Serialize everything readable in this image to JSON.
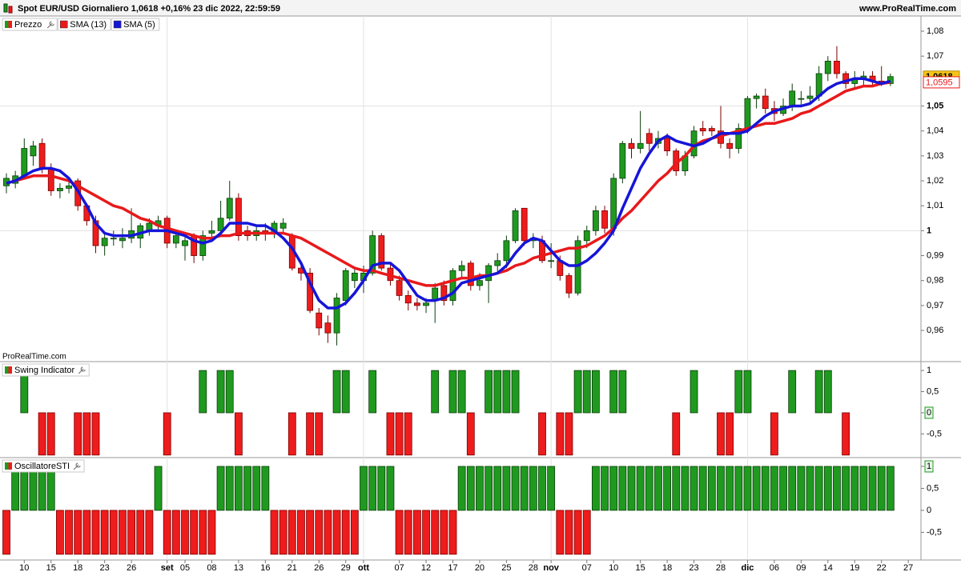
{
  "header": {
    "title": "Spot EUR/USD Giornaliero 1,0618 +0,16% 23 dic 2022, 22:59:59",
    "site": "www.ProRealTime.com"
  },
  "chart_data": [
    {
      "type": "candlestick",
      "watermark": "ProRealTime.com",
      "categories": [
        null,
        null,
        "10",
        null,
        null,
        "15",
        null,
        null,
        "18",
        null,
        null,
        "23",
        null,
        null,
        "26",
        null,
        null,
        null,
        "set",
        null,
        "05",
        null,
        null,
        "08",
        null,
        null,
        "13",
        null,
        null,
        "16",
        null,
        null,
        "21",
        null,
        null,
        "26",
        null,
        null,
        "29",
        null,
        "ott",
        null,
        null,
        null,
        "07",
        null,
        null,
        "12",
        null,
        null,
        "17",
        null,
        null,
        "20",
        null,
        null,
        "25",
        null,
        null,
        "28",
        null,
        "nov",
        null,
        null,
        null,
        "07",
        null,
        null,
        "10",
        null,
        null,
        "15",
        null,
        null,
        "18",
        null,
        null,
        "23",
        null,
        null,
        "28",
        null,
        null,
        "dic",
        null,
        null,
        "06",
        null,
        null,
        "09",
        null,
        null,
        "14",
        null,
        null,
        "19",
        null,
        null,
        "22",
        null,
        null,
        "27"
      ],
      "ylim": [
        0.9475,
        1.0861
      ],
      "yticks": [
        {
          "value": 1.08,
          "label": "1,08"
        },
        {
          "value": 1.07,
          "label": "1,07"
        },
        {
          "value": 1.05,
          "label": "1,05",
          "major": true
        },
        {
          "value": 1.04,
          "label": "1,04"
        },
        {
          "value": 1.03,
          "label": "1,03"
        },
        {
          "value": 1.02,
          "label": "1,02"
        },
        {
          "value": 1.01,
          "label": "1,01"
        },
        {
          "value": 1,
          "label": "1",
          "major": true
        },
        {
          "value": 0.99,
          "label": "0,99"
        },
        {
          "value": 0.98,
          "label": "0,98"
        },
        {
          "value": 0.97,
          "label": "0,97"
        },
        {
          "value": 0.96,
          "label": "0,96"
        }
      ],
      "series": [
        {
          "name": "Prezzo",
          "up_color": "#1f9a1f",
          "down_color": "#ee1c1c",
          "open": [
            1.018,
            1.019,
            1.022,
            1.03,
            1.035,
            1.025,
            1.016,
            1.017,
            1.02,
            1.01,
            1.004,
            0.994,
            0.997,
            0.996,
            0.997,
            0.997,
            1.0,
            1.002,
            1.005,
            0.995,
            0.994,
            0.998,
            0.99,
            0.999,
            1.0,
            1.005,
            1.013,
            1.0,
            0.998,
            1.0,
            0.999,
            1.001,
            0.998,
            0.985,
            0.983,
            0.967,
            0.963,
            0.959,
            0.972,
            0.98,
            0.98,
            0.983,
            0.998,
            0.985,
            0.98,
            0.974,
            0.971,
            0.97,
            0.972,
            0.978,
            0.972,
            0.984,
            0.987,
            0.978,
            0.98,
            0.986,
            0.988,
            0.996,
            1.009,
            0.996,
            0.996,
            0.988,
            0.988,
            0.982,
            0.975,
            0.996,
            1.0,
            1.008,
            1.001,
            1.021,
            1.035,
            1.033,
            1.039,
            1.035,
            1.037,
            1.032,
            1.024,
            1.03,
            1.041,
            1.041,
            1.04,
            1.035,
            1.033,
            1.041,
            1.053,
            1.054,
            1.049,
            1.047,
            1.05,
            1.053,
            1.053,
            1.054,
            1.063,
            1.068,
            1.063,
            1.059,
            1.061,
            1.062,
            1.06,
            1.059,
            null,
            null
          ],
          "high": [
            1.023,
            1.024,
            1.037,
            1.036,
            1.037,
            1.027,
            1.019,
            1.02,
            1.021,
            1.011,
            1.006,
            0.999,
            1.0,
            1.001,
            1.009,
            1.003,
            1.005,
            1.006,
            1.006,
            1.0,
            0.999,
            0.999,
            1.0,
            1.004,
            1.012,
            1.02,
            1.015,
            1.002,
            1.002,
            1.003,
            1.004,
            1.005,
            0.999,
            0.987,
            0.985,
            0.969,
            0.966,
            0.975,
            0.985,
            0.985,
            0.986,
            1.0,
            0.999,
            0.987,
            0.982,
            0.976,
            0.973,
            0.973,
            0.979,
            0.98,
            0.985,
            0.988,
            0.988,
            0.983,
            0.987,
            0.991,
            0.998,
            1.009,
            1.009,
            0.999,
            0.998,
            0.995,
            0.99,
            0.983,
            0.998,
            1.002,
            1.01,
            1.01,
            1.023,
            1.036,
            1.037,
            1.048,
            1.041,
            1.04,
            1.039,
            1.033,
            1.032,
            1.042,
            1.044,
            1.042,
            1.05,
            1.037,
            1.043,
            1.054,
            1.055,
            1.057,
            1.052,
            1.053,
            1.059,
            1.056,
            1.058,
            1.066,
            1.07,
            1.074,
            1.064,
            1.064,
            1.064,
            1.064,
            1.066,
            1.063,
            null,
            null
          ],
          "low": [
            1.015,
            1.017,
            1.021,
            1.026,
            1.023,
            1.014,
            1.013,
            1.015,
            1.008,
            1.002,
            0.991,
            0.99,
            0.994,
            0.993,
            0.995,
            0.993,
            0.998,
            1.0,
            0.993,
            0.993,
            0.988,
            0.987,
            0.988,
            0.997,
            0.998,
            1.004,
            0.996,
            0.996,
            0.996,
            0.996,
            0.997,
            0.999,
            0.984,
            0.98,
            0.967,
            0.958,
            0.955,
            0.954,
            0.97,
            0.977,
            0.975,
            0.982,
            0.984,
            0.978,
            0.972,
            0.968,
            0.968,
            0.967,
            0.963,
            0.97,
            0.97,
            0.981,
            0.976,
            0.976,
            0.971,
            0.983,
            0.985,
            0.995,
            0.994,
            0.993,
            0.987,
            0.985,
            0.98,
            0.973,
            0.974,
            0.993,
            0.998,
            0.999,
            0.998,
            1.019,
            1.029,
            1.031,
            1.032,
            1.033,
            1.03,
            1.022,
            1.022,
            1.029,
            1.038,
            1.038,
            1.033,
            1.029,
            1.031,
            1.039,
            1.049,
            1.047,
            1.044,
            1.046,
            1.048,
            1.05,
            1.051,
            1.052,
            1.06,
            1.061,
            1.057,
            1.057,
            1.058,
            1.058,
            1.058,
            1.058,
            null,
            null
          ],
          "close": [
            1.021,
            1.022,
            1.033,
            1.034,
            1.025,
            1.016,
            1.017,
            1.018,
            1.01,
            1.004,
            0.994,
            0.997,
            0.997,
            0.997,
            1.0,
            1.002,
            1.003,
            1.004,
            0.995,
            0.998,
            0.996,
            0.99,
            0.998,
            1.0,
            1.005,
            1.013,
            0.998,
            0.998,
            1.0,
            0.999,
            1.003,
            1.003,
            0.985,
            0.983,
            0.968,
            0.961,
            0.959,
            0.973,
            0.984,
            0.983,
            0.983,
            0.998,
            0.985,
            0.98,
            0.974,
            0.971,
            0.97,
            0.971,
            0.977,
            0.972,
            0.984,
            0.986,
            0.978,
            0.98,
            0.986,
            0.988,
            0.996,
            1.008,
            0.996,
            0.997,
            0.988,
            0.988,
            0.982,
            0.975,
            0.996,
            1.0,
            1.008,
            1.001,
            1.021,
            1.035,
            1.033,
            1.035,
            1.035,
            1.037,
            1.032,
            1.024,
            1.03,
            1.04,
            1.04,
            1.04,
            1.035,
            1.033,
            1.041,
            1.053,
            1.054,
            1.049,
            1.047,
            1.05,
            1.056,
            1.053,
            1.054,
            1.063,
            1.068,
            1.063,
            1.059,
            1.061,
            1.062,
            1.06,
            1.059,
            1.0618,
            null,
            null
          ],
          "value_labels": {
            "99": "1,0618"
          }
        },
        {
          "name": "SMA (13)",
          "color": "#e8191b",
          "values": [
            1.019,
            1.02,
            1.021,
            1.022,
            1.022,
            1.022,
            1.021,
            1.02,
            1.018,
            1.016,
            1.014,
            1.012,
            1.01,
            1.009,
            1.007,
            1.005,
            1.004,
            1.002,
            1.001,
            1.0,
            0.999,
            0.998,
            0.997,
            0.997,
            0.998,
            0.998,
            0.999,
            0.999,
            0.999,
            0.999,
            0.999,
            0.999,
            0.998,
            0.997,
            0.995,
            0.993,
            0.991,
            0.989,
            0.987,
            0.985,
            0.984,
            0.984,
            0.983,
            0.982,
            0.981,
            0.98,
            0.979,
            0.978,
            0.978,
            0.979,
            0.98,
            0.981,
            0.981,
            0.982,
            0.982,
            0.983,
            0.984,
            0.986,
            0.987,
            0.989,
            0.99,
            0.991,
            0.992,
            0.993,
            0.993,
            0.994,
            0.996,
            0.998,
            1.001,
            1.005,
            1.008,
            1.012,
            1.016,
            1.02,
            1.023,
            1.027,
            1.03,
            1.034,
            1.036,
            1.037,
            1.038,
            1.039,
            1.04,
            1.041,
            1.042,
            1.043,
            1.043,
            1.044,
            1.045,
            1.047,
            1.048,
            1.05,
            1.052,
            1.054,
            1.056,
            1.057,
            1.058,
            1.058,
            1.059,
            1.0595,
            null,
            null
          ],
          "value_labels": {
            "99": "1,0595"
          }
        },
        {
          "name": "SMA (5)",
          "color": "#1515d8",
          "values": [
            1.019,
            1.02,
            1.022,
            1.024,
            1.025,
            1.025,
            1.024,
            1.021,
            1.016,
            1.01,
            1.003,
            0.999,
            0.998,
            0.998,
            0.998,
            0.999,
            1.0,
            1.0,
            1.0,
            0.999,
            0.998,
            0.996,
            0.995,
            0.996,
            0.999,
            1.003,
            1.003,
            1.003,
            1.002,
            1.002,
            1.0,
            0.997,
            0.993,
            0.987,
            0.979,
            0.972,
            0.969,
            0.969,
            0.971,
            0.975,
            0.98,
            0.986,
            0.987,
            0.987,
            0.984,
            0.979,
            0.974,
            0.972,
            0.972,
            0.973,
            0.975,
            0.979,
            0.98,
            0.981,
            0.982,
            0.983,
            0.986,
            0.991,
            0.995,
            0.997,
            0.996,
            0.992,
            0.988,
            0.986,
            0.986,
            0.988,
            0.991,
            0.995,
            1.0,
            1.009,
            1.017,
            1.025,
            1.031,
            1.036,
            1.038,
            1.036,
            1.035,
            1.034,
            1.035,
            1.037,
            1.039,
            1.039,
            1.039,
            1.04,
            1.043,
            1.046,
            1.048,
            1.049,
            1.05,
            1.05,
            1.051,
            1.054,
            1.057,
            1.059,
            1.06,
            1.061,
            1.061,
            1.06,
            1.059,
            1.06,
            null,
            null
          ]
        }
      ]
    },
    {
      "type": "bar",
      "title": "Swing Indicator",
      "positive_color": "#1f9a1f",
      "negative_color": "#ee1c1c",
      "ylim": [
        -1.06,
        1.21
      ],
      "yticks": [
        1,
        {
          "value": 0.5,
          "label": "0,5"
        },
        0,
        {
          "value": -0.5,
          "label": "-0,5"
        }
      ],
      "values": [
        0,
        0,
        1,
        0,
        -1,
        -1,
        0,
        0,
        -1,
        -1,
        -1,
        0,
        0,
        0,
        0,
        0,
        0,
        0,
        -1,
        0,
        0,
        0,
        1,
        0,
        1,
        1,
        -1,
        0,
        0,
        0,
        0,
        0,
        -1,
        0,
        -1,
        -1,
        0,
        1,
        1,
        0,
        0,
        1,
        0,
        -1,
        -1,
        -1,
        0,
        0,
        1,
        0,
        1,
        1,
        -1,
        0,
        1,
        1,
        1,
        1,
        0,
        0,
        -1,
        0,
        -1,
        -1,
        1,
        1,
        1,
        0,
        1,
        1,
        0,
        0,
        0,
        0,
        0,
        -1,
        0,
        1,
        0,
        0,
        -1,
        -1,
        1,
        1,
        0,
        0,
        -1,
        0,
        1,
        0,
        0,
        1,
        1,
        0,
        -1,
        0,
        0,
        0,
        0,
        0,
        null,
        null
      ]
    },
    {
      "type": "bar",
      "title": "OscillatoreSTI",
      "positive_color": "#1f9a1f",
      "negative_color": "#ee1c1c",
      "ylim": [
        -1.13,
        1.2
      ],
      "yticks": [
        1,
        {
          "value": 0.5,
          "label": "0,5"
        },
        0,
        {
          "value": -0.5,
          "label": "-0,5"
        }
      ],
      "values": [
        -1,
        1,
        1,
        1,
        1,
        1,
        -1,
        -1,
        -1,
        -1,
        -1,
        -1,
        -1,
        -1,
        -1,
        -1,
        -1,
        1,
        -1,
        -1,
        -1,
        -1,
        -1,
        -1,
        1,
        1,
        1,
        1,
        1,
        1,
        -1,
        -1,
        -1,
        -1,
        -1,
        -1,
        -1,
        -1,
        -1,
        -1,
        1,
        1,
        1,
        1,
        -1,
        -1,
        -1,
        -1,
        -1,
        -1,
        -1,
        1,
        1,
        1,
        1,
        1,
        1,
        1,
        1,
        1,
        1,
        1,
        -1,
        -1,
        -1,
        -1,
        1,
        1,
        1,
        1,
        1,
        1,
        1,
        1,
        1,
        1,
        1,
        1,
        1,
        1,
        1,
        1,
        1,
        1,
        1,
        1,
        1,
        1,
        1,
        1,
        1,
        1,
        1,
        1,
        1,
        1,
        1,
        1,
        1,
        1,
        null,
        null
      ]
    }
  ]
}
